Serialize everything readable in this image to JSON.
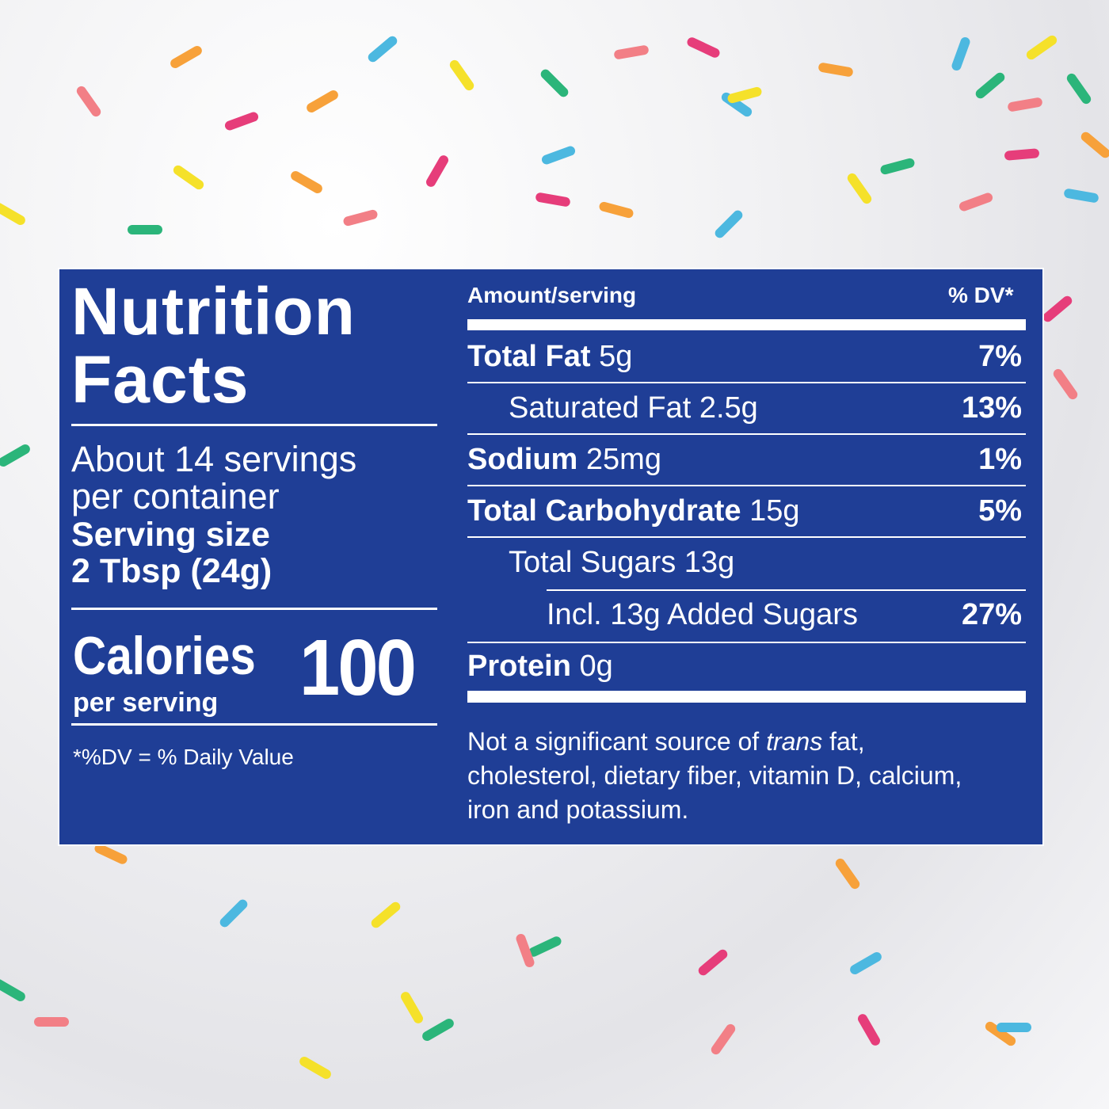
{
  "title_line1": "Nutrition",
  "title_line2": "Facts",
  "servings_line1": "About 14 servings",
  "servings_line2": "per container",
  "serving_size_label": "Serving size",
  "serving_size_value": "2 Tbsp (24g)",
  "calories_label": "Calories",
  "calories_sub": "per serving",
  "calories_value": "100",
  "dv_footnote": "*%DV = % Daily Value",
  "header": {
    "amount": "Amount/serving",
    "dv": "% DV*"
  },
  "nutrients": [
    {
      "name": "Total Fat",
      "amount": "5g",
      "dv": "7%",
      "bold": true
    },
    {
      "name": "Saturated Fat",
      "amount": "2.5g",
      "dv": "13%",
      "bold": false
    },
    {
      "name": "Sodium",
      "amount": "25mg",
      "dv": "1%",
      "bold": true
    },
    {
      "name": "Total Carbohydrate",
      "amount": "15g",
      "dv": "5%",
      "bold": true
    },
    {
      "name": "Total Sugars",
      "amount": "13g",
      "dv": "",
      "bold": false
    },
    {
      "name": "Incl. 13g Added Sugars",
      "amount": "",
      "dv": "27%",
      "bold": false
    },
    {
      "name": "Protein",
      "amount": "0g",
      "dv": "",
      "bold": true
    }
  ],
  "footer": {
    "part1": "Not a significant source of ",
    "italic": "trans",
    "part2": " fat,",
    "line2": "cholesterol, dietary fiber, vitamin D, calcium,",
    "line3": "iron and potassium."
  },
  "colors": {
    "panel": "#1f3e96",
    "text": "#ffffff"
  }
}
